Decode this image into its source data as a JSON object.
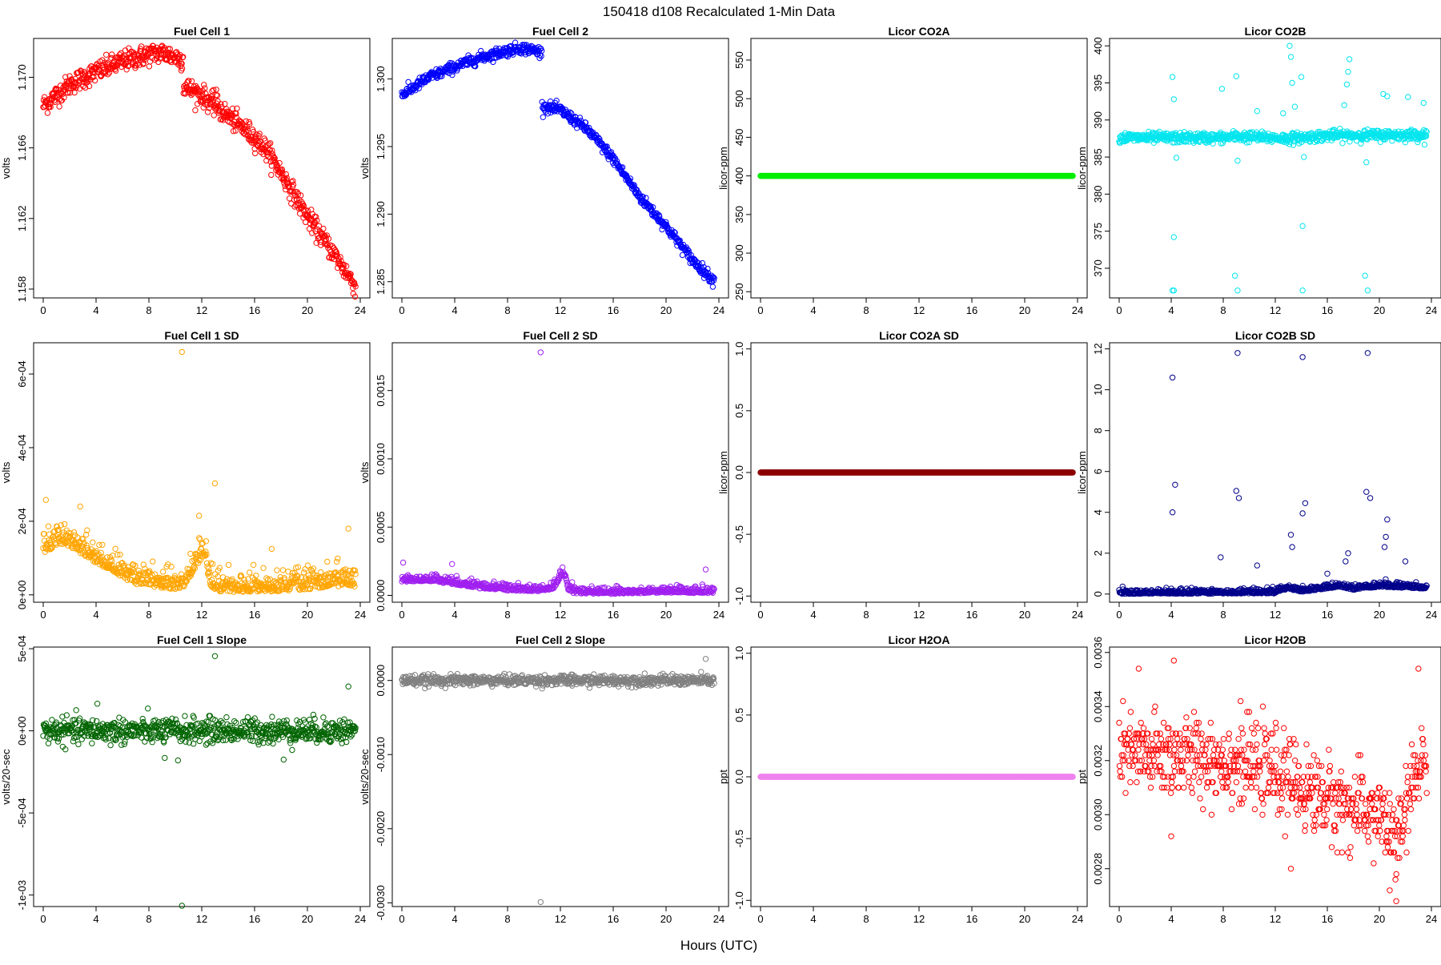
{
  "figure": {
    "title": "150418   d108   Recalculated 1-Min Data",
    "xlabel": "Hours (UTC)"
  },
  "chart_data": [
    {
      "title": "Fuel Cell 1",
      "ylabel": "volts",
      "type": "scatter",
      "color": "#ff0000",
      "xlim": [
        0,
        24
      ],
      "xticks": [
        0,
        4,
        8,
        12,
        16,
        20,
        24
      ],
      "ylim": [
        1.1575,
        1.1722
      ],
      "yticks": [
        1.158,
        1.162,
        1.166,
        1.17
      ],
      "yticklabels": [
        "1.158",
        "1.162",
        "1.166",
        "1.170"
      ],
      "trend": [
        [
          0,
          1.1684
        ],
        [
          2,
          1.1696
        ],
        [
          4,
          1.1703
        ],
        [
          6,
          1.1709
        ],
        [
          8,
          1.1713
        ],
        [
          9,
          1.1714
        ],
        [
          10.6,
          1.171
        ]
      ],
      "trend2": [
        [
          10.6,
          1.1695
        ],
        [
          12,
          1.169
        ],
        [
          14,
          1.1678
        ],
        [
          16,
          1.1666
        ],
        [
          17,
          1.1658
        ],
        [
          18,
          1.1646
        ],
        [
          20,
          1.1621
        ],
        [
          22,
          1.16
        ],
        [
          23.7,
          1.1581
        ]
      ],
      "noise": 0.0003,
      "outliers": [
        [
          13.1,
          1.1693
        ],
        [
          13.1,
          1.169
        ]
      ]
    },
    {
      "title": "Fuel Cell 2",
      "ylabel": "volts",
      "type": "scatter",
      "color": "#0000ff",
      "xlim": [
        0,
        24
      ],
      "xticks": [
        0,
        4,
        8,
        12,
        16,
        20,
        24
      ],
      "ylim": [
        1.2838,
        1.303
      ],
      "yticks": [
        1.285,
        1.29,
        1.295,
        1.3
      ],
      "yticklabels": [
        "1.285",
        "1.290",
        "1.295",
        "1.300"
      ],
      "trend": [
        [
          0,
          1.2988
        ],
        [
          2,
          1.3001
        ],
        [
          4,
          1.3009
        ],
        [
          6,
          1.3016
        ],
        [
          8,
          1.3021
        ],
        [
          9,
          1.3023
        ],
        [
          10.6,
          1.302
        ]
      ],
      "trend2": [
        [
          10.6,
          1.298
        ],
        [
          12,
          1.2977
        ],
        [
          14,
          1.2963
        ],
        [
          16,
          1.2941
        ],
        [
          18,
          1.2913
        ],
        [
          20,
          1.2891
        ],
        [
          22,
          1.2866
        ],
        [
          23.7,
          1.285
        ]
      ],
      "noise": 0.0002,
      "outliers": []
    },
    {
      "title": "Licor CO2A",
      "ylabel": "licor-ppm",
      "type": "scatter",
      "color": "#00ee00",
      "xlim": [
        0,
        24
      ],
      "xticks": [
        0,
        4,
        8,
        12,
        16,
        20,
        24
      ],
      "ylim": [
        242,
        578
      ],
      "yticks": [
        250,
        300,
        350,
        400,
        450,
        500,
        550
      ],
      "yticklabels": [
        "250",
        "300",
        "350",
        "400",
        "450",
        "500",
        "550"
      ],
      "trend": [
        [
          0,
          400
        ],
        [
          24,
          400
        ]
      ],
      "noise": 0,
      "outliers": []
    },
    {
      "title": "Licor CO2B",
      "ylabel": "licor-ppm",
      "type": "scatter",
      "color": "#00e5ee",
      "xlim": [
        0,
        24
      ],
      "xticks": [
        0,
        4,
        8,
        12,
        16,
        20,
        24
      ],
      "ylim": [
        366,
        401
      ],
      "yticks": [
        370,
        375,
        380,
        385,
        390,
        395,
        400
      ],
      "yticklabels": [
        "370",
        "375",
        "380",
        "385",
        "390",
        "395",
        "400"
      ],
      "trend": [
        [
          0,
          387.6
        ],
        [
          8,
          387.6
        ],
        [
          9,
          387.8
        ],
        [
          13,
          387.5
        ],
        [
          16,
          387.9
        ],
        [
          24,
          388.0
        ]
      ],
      "noise": 0.35,
      "outliers": [
        [
          4.1,
          395.8
        ],
        [
          4.2,
          392.8
        ],
        [
          4.4,
          384.9
        ],
        [
          4.2,
          374.2
        ],
        [
          4.1,
          367.0
        ],
        [
          4.2,
          367.0
        ],
        [
          7.9,
          394.2
        ],
        [
          9.0,
          395.9
        ],
        [
          9.1,
          384.5
        ],
        [
          8.9,
          369.0
        ],
        [
          9.1,
          367.0
        ],
        [
          13.1,
          400.0
        ],
        [
          13.2,
          398.5
        ],
        [
          13.3,
          395.0
        ],
        [
          13.5,
          391.8
        ],
        [
          14.0,
          395.8
        ],
        [
          14.2,
          385.0
        ],
        [
          14.1,
          375.7
        ],
        [
          14.1,
          367.0
        ],
        [
          17.3,
          392.0
        ],
        [
          17.5,
          394.8
        ],
        [
          17.6,
          396.5
        ],
        [
          17.7,
          398.2
        ],
        [
          18.9,
          369.0
        ],
        [
          19.1,
          367.0
        ],
        [
          19.0,
          384.3
        ],
        [
          20.3,
          393.5
        ],
        [
          20.6,
          393.2
        ],
        [
          22.2,
          393.1
        ],
        [
          23.4,
          392.3
        ],
        [
          12.6,
          390.9
        ],
        [
          10.6,
          391.2
        ]
      ]
    },
    {
      "title": "Fuel Cell 1 SD",
      "ylabel": "volts",
      "type": "scatter",
      "color": "#ffa500",
      "xlim": [
        0,
        24
      ],
      "xticks": [
        0,
        4,
        8,
        12,
        16,
        20,
        24
      ],
      "ylim": [
        -2e-05,
        0.000685
      ],
      "yticks": [
        0,
        0.0002,
        0.0004,
        0.0006
      ],
      "yticklabels": [
        "0e+00",
        "2e-04",
        "4e-04",
        "6e-04"
      ],
      "trend": [
        [
          0,
          0.000125
        ],
        [
          1.5,
          0.00015
        ],
        [
          3,
          0.00012
        ],
        [
          5,
          7.5e-05
        ],
        [
          7,
          4e-05
        ],
        [
          9,
          3e-05
        ],
        [
          10.5,
          2.5e-05
        ],
        [
          11.5,
          8e-05
        ],
        [
          12.2,
          0.00012
        ],
        [
          12.6,
          4e-05
        ],
        [
          13,
          2e-05
        ],
        [
          16,
          1.8e-05
        ],
        [
          20,
          2.5e-05
        ],
        [
          22,
          3.5e-05
        ],
        [
          24,
          3e-05
        ]
      ],
      "noise": 2.8e-05,
      "outliers": [
        [
          10.5,
          0.00066
        ],
        [
          13.0,
          0.000303
        ],
        [
          0.2,
          0.000258
        ],
        [
          2.8,
          0.00024
        ],
        [
          11.8,
          0.000215
        ],
        [
          23.1,
          0.00018
        ],
        [
          17.3,
          0.000125
        ],
        [
          21.5,
          9e-05
        ]
      ]
    },
    {
      "title": "Fuel Cell 2 SD",
      "ylabel": "volts",
      "type": "scatter",
      "color": "#a020f0",
      "xlim": [
        0,
        24
      ],
      "xticks": [
        0,
        4,
        8,
        12,
        16,
        20,
        24
      ],
      "ylim": [
        -5e-05,
        0.00185
      ],
      "yticks": [
        0,
        0.0005,
        0.001,
        0.0015
      ],
      "yticklabels": [
        "0.0000",
        "0.0005",
        "0.0010",
        "0.0015"
      ],
      "trend": [
        [
          0,
          0.00011
        ],
        [
          2,
          0.000115
        ],
        [
          4,
          9e-05
        ],
        [
          6,
          6e-05
        ],
        [
          8,
          4.5e-05
        ],
        [
          10.5,
          4e-05
        ],
        [
          11.5,
          6e-05
        ],
        [
          12.2,
          0.00017
        ],
        [
          12.6,
          5e-05
        ],
        [
          13,
          2.5e-05
        ],
        [
          16,
          2e-05
        ],
        [
          20,
          3e-05
        ],
        [
          24,
          2.5e-05
        ]
      ],
      "noise": 2.5e-05,
      "outliers": [
        [
          10.5,
          0.00178
        ],
        [
          23.0,
          0.00019
        ],
        [
          0.1,
          0.00024
        ],
        [
          3.8,
          0.00023
        ]
      ]
    },
    {
      "title": "Licor CO2A SD",
      "ylabel": "licor-ppm",
      "type": "scatter",
      "color": "#8b0000",
      "xlim": [
        0,
        24
      ],
      "xticks": [
        0,
        4,
        8,
        12,
        16,
        20,
        24
      ],
      "ylim": [
        -1.05,
        1.05
      ],
      "yticks": [
        -1.0,
        -0.5,
        0.0,
        0.5,
        1.0
      ],
      "yticklabels": [
        "-1.0",
        "-0.5",
        "0.0",
        "0.5",
        "1.0"
      ],
      "trend": [
        [
          0,
          0
        ],
        [
          24,
          0
        ]
      ],
      "noise": 0,
      "outliers": []
    },
    {
      "title": "Licor CO2B SD",
      "ylabel": "licor-ppm",
      "type": "scatter",
      "color": "#00008b",
      "xlim": [
        0,
        24
      ],
      "xticks": [
        0,
        4,
        8,
        12,
        16,
        20,
        24
      ],
      "ylim": [
        -0.4,
        12.3
      ],
      "yticks": [
        0,
        2,
        4,
        6,
        8,
        10,
        12
      ],
      "yticklabels": [
        "0",
        "2",
        "4",
        "6",
        "8",
        "10",
        "12"
      ],
      "trend": [
        [
          0,
          0.05
        ],
        [
          12,
          0.08
        ],
        [
          13,
          0.3
        ],
        [
          14,
          0.15
        ],
        [
          17,
          0.4
        ],
        [
          18,
          0.25
        ],
        [
          20,
          0.4
        ],
        [
          24,
          0.3
        ]
      ],
      "noise": 0.12,
      "outliers": [
        [
          4.1,
          10.6
        ],
        [
          9.1,
          11.8
        ],
        [
          14.1,
          11.6
        ],
        [
          19.1,
          11.8
        ],
        [
          4.1,
          4.0
        ],
        [
          4.3,
          5.35
        ],
        [
          9.0,
          5.05
        ],
        [
          9.2,
          4.7
        ],
        [
          14.3,
          4.45
        ],
        [
          14.1,
          3.95
        ],
        [
          19.0,
          5.0
        ],
        [
          19.3,
          4.7
        ],
        [
          13.2,
          2.9
        ],
        [
          13.3,
          2.3
        ],
        [
          20.6,
          3.65
        ],
        [
          20.5,
          2.8
        ],
        [
          20.4,
          2.3
        ],
        [
          22.0,
          1.6
        ],
        [
          7.8,
          1.8
        ],
        [
          10.6,
          1.4
        ],
        [
          17.6,
          2.0
        ],
        [
          17.4,
          1.6
        ],
        [
          16.0,
          1.0
        ]
      ]
    },
    {
      "title": "Fuel Cell 1 Slope",
      "ylabel": "volts/20-sec",
      "type": "scatter",
      "color": "#006400",
      "xlim": [
        0,
        24
      ],
      "xticks": [
        0,
        4,
        8,
        12,
        16,
        20,
        24
      ],
      "ylim": [
        -0.00107,
        0.00051
      ],
      "yticks": [
        -0.001,
        -0.0005,
        0,
        0.0005
      ],
      "yticklabels": [
        "-1e-03",
        "-5e-04",
        "0e+00",
        "5e-04"
      ],
      "trend": [
        [
          0,
          0
        ],
        [
          24,
          0
        ]
      ],
      "noise": 3.8e-05,
      "outliers": [
        [
          13.0,
          0.000455
        ],
        [
          10.5,
          -0.001065
        ],
        [
          23.1,
          0.00027
        ],
        [
          4.1,
          0.000165
        ],
        [
          10.2,
          -0.00018
        ],
        [
          18.2,
          -0.000175
        ],
        [
          9.2,
          -0.000165
        ]
      ]
    },
    {
      "title": "Fuel Cell 2 Slope",
      "ylabel": "volts/20-sec",
      "type": "scatter",
      "color": "#808080",
      "xlim": [
        0,
        24
      ],
      "xticks": [
        0,
        4,
        8,
        12,
        16,
        20,
        24
      ],
      "ylim": [
        -0.00305,
        0.00045
      ],
      "yticks": [
        -0.003,
        -0.002,
        -0.001,
        0.0
      ],
      "yticklabels": [
        "-0.0030",
        "-0.0020",
        "-0.0010",
        "0.0000"
      ],
      "trend": [
        [
          0,
          0
        ],
        [
          24,
          0
        ]
      ],
      "noise": 3.5e-05,
      "outliers": [
        [
          10.5,
          -0.00299
        ],
        [
          23.0,
          0.00029
        ]
      ]
    },
    {
      "title": "Licor H2OA",
      "ylabel": "ppt",
      "type": "scatter",
      "color": "#ee82ee",
      "xlim": [
        0,
        24
      ],
      "xticks": [
        0,
        4,
        8,
        12,
        16,
        20,
        24
      ],
      "ylim": [
        -1.05,
        1.05
      ],
      "yticks": [
        -1.0,
        -0.5,
        0.0,
        0.5,
        1.0
      ],
      "yticklabels": [
        "-1.0",
        "-0.5",
        "0.0",
        "0.5",
        "1.0"
      ],
      "trend": [
        [
          0,
          0
        ],
        [
          24,
          0
        ]
      ],
      "noise": 0,
      "outliers": []
    },
    {
      "title": "Licor H2OB",
      "ylabel": "ppt",
      "type": "scatter",
      "color": "#ff0000",
      "xlim": [
        0,
        24
      ],
      "xticks": [
        0,
        4,
        8,
        12,
        16,
        20,
        24
      ],
      "ylim": [
        0.00266,
        0.00362
      ],
      "yticks": [
        0.0028,
        0.003,
        0.0032,
        0.0034,
        0.0036
      ],
      "yticklabels": [
        "0.0028",
        "0.0030",
        "0.0032",
        "0.0034",
        "0.0036"
      ],
      "trend": [
        [
          0,
          0.00322
        ],
        [
          4,
          0.00322
        ],
        [
          8,
          0.0032
        ],
        [
          12,
          0.00316
        ],
        [
          14,
          0.0031
        ],
        [
          18,
          0.00302
        ],
        [
          20,
          0.003
        ],
        [
          21,
          0.00292
        ],
        [
          21.5,
          0.0029
        ],
        [
          22.2,
          0.00305
        ],
        [
          23,
          0.00318
        ],
        [
          24,
          0.00325
        ]
      ],
      "noise": 7.5e-05,
      "outliers": [
        [
          4.2,
          0.00357
        ],
        [
          1.5,
          0.00354
        ],
        [
          23.0,
          0.00354
        ],
        [
          21.3,
          0.00268
        ],
        [
          20.8,
          0.00272
        ],
        [
          4.0,
          0.00292
        ],
        [
          13.2,
          0.0028
        ]
      ]
    }
  ]
}
